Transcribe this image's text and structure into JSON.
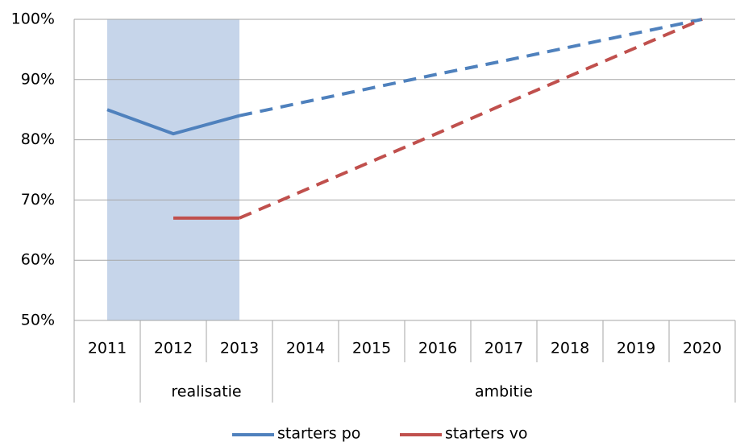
{
  "chart_data": {
    "type": "line",
    "categories": [
      "2011",
      "2012",
      "2013",
      "2014",
      "2015",
      "2016",
      "2017",
      "2018",
      "2019",
      "2020"
    ],
    "groups": [
      {
        "label": null,
        "count": 1
      },
      {
        "label": "realisatie",
        "count": 2
      },
      {
        "label": "ambitie",
        "count": 7
      }
    ],
    "series": [
      {
        "name": "starters po",
        "color": "#4f81bd",
        "values": [
          85,
          81,
          84,
          86.3,
          88.6,
          90.9,
          93.1,
          95.4,
          97.7,
          100
        ]
      },
      {
        "name": "starters vo",
        "color": "#c0504d",
        "values": [
          null,
          67,
          67,
          71.7,
          76.4,
          81.1,
          85.9,
          90.6,
          95.3,
          100
        ]
      }
    ],
    "dashed_from": 2,
    "highlight": [
      0,
      2
    ],
    "highlight_color": "#c6d5ea",
    "ylim": [
      50,
      100
    ],
    "yticks": [
      {
        "value": 50,
        "label": "50%"
      },
      {
        "value": 60,
        "label": "60%"
      },
      {
        "value": 70,
        "label": "70%"
      },
      {
        "value": 80,
        "label": "80%"
      },
      {
        "value": 90,
        "label": "90%"
      },
      {
        "value": 100,
        "label": "100%"
      }
    ],
    "grid": true,
    "legend": "bottom"
  }
}
